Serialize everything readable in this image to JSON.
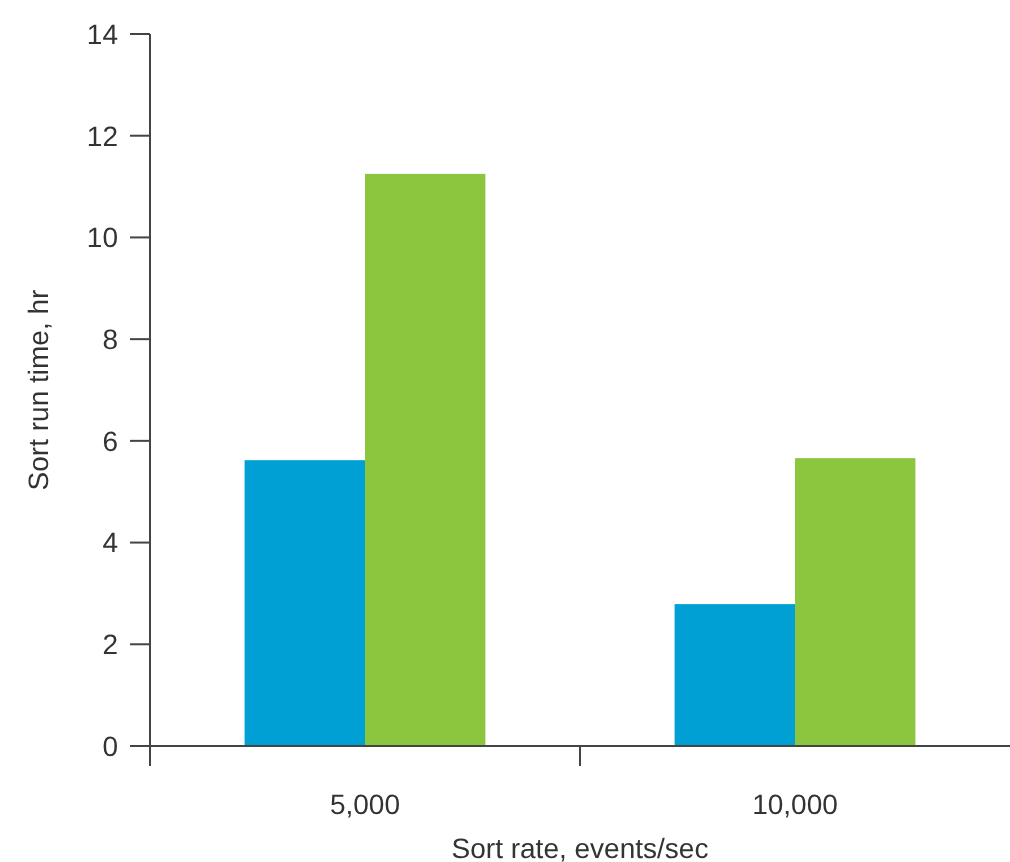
{
  "chart_data": {
    "type": "bar",
    "xlabel": "Sort rate, events/sec",
    "ylabel": "Sort run time, hr",
    "categories": [
      "5,000",
      "10,000"
    ],
    "series": [
      {
        "color": "#009fd4",
        "values": [
          5.62,
          2.79
        ]
      },
      {
        "color": "#8cc63f",
        "values": [
          11.25,
          5.66
        ]
      }
    ],
    "ylim": [
      0,
      14
    ],
    "yticks": [
      0,
      2,
      4,
      6,
      8,
      10,
      12,
      14
    ],
    "grid": false
  }
}
